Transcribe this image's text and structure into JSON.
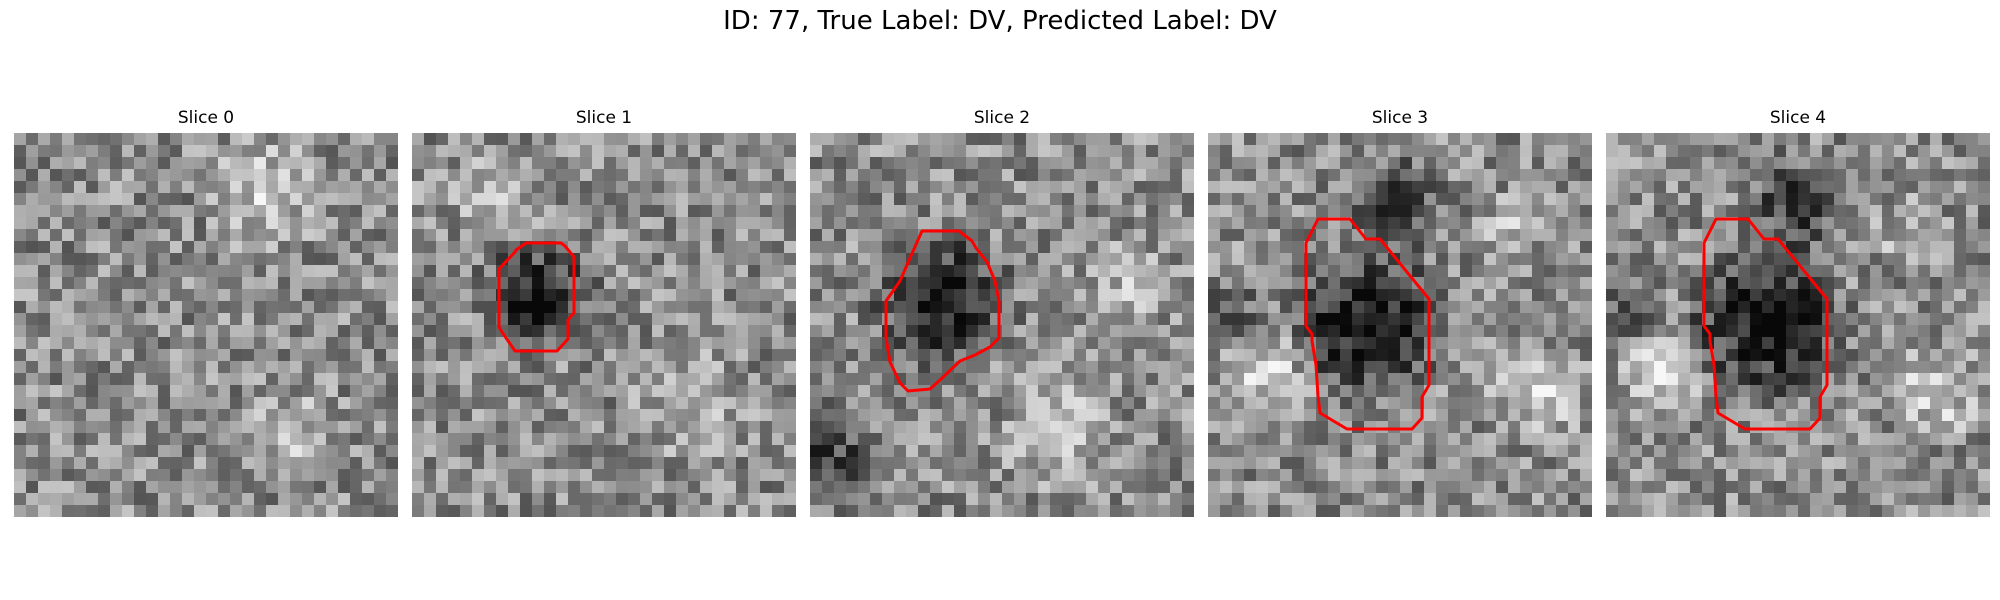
{
  "figure": {
    "title": "ID: 77, True Label: DV, Predicted Label: DV"
  },
  "panels": [
    {
      "title": "Slice 0",
      "has_contour": false
    },
    {
      "title": "Slice 1",
      "has_contour": true
    },
    {
      "title": "Slice 2",
      "has_contour": true
    },
    {
      "title": "Slice 3",
      "has_contour": true
    },
    {
      "title": "Slice 4",
      "has_contour": true
    }
  ],
  "colors": {
    "contour": "#ff0000",
    "background": "#ffffff"
  }
}
